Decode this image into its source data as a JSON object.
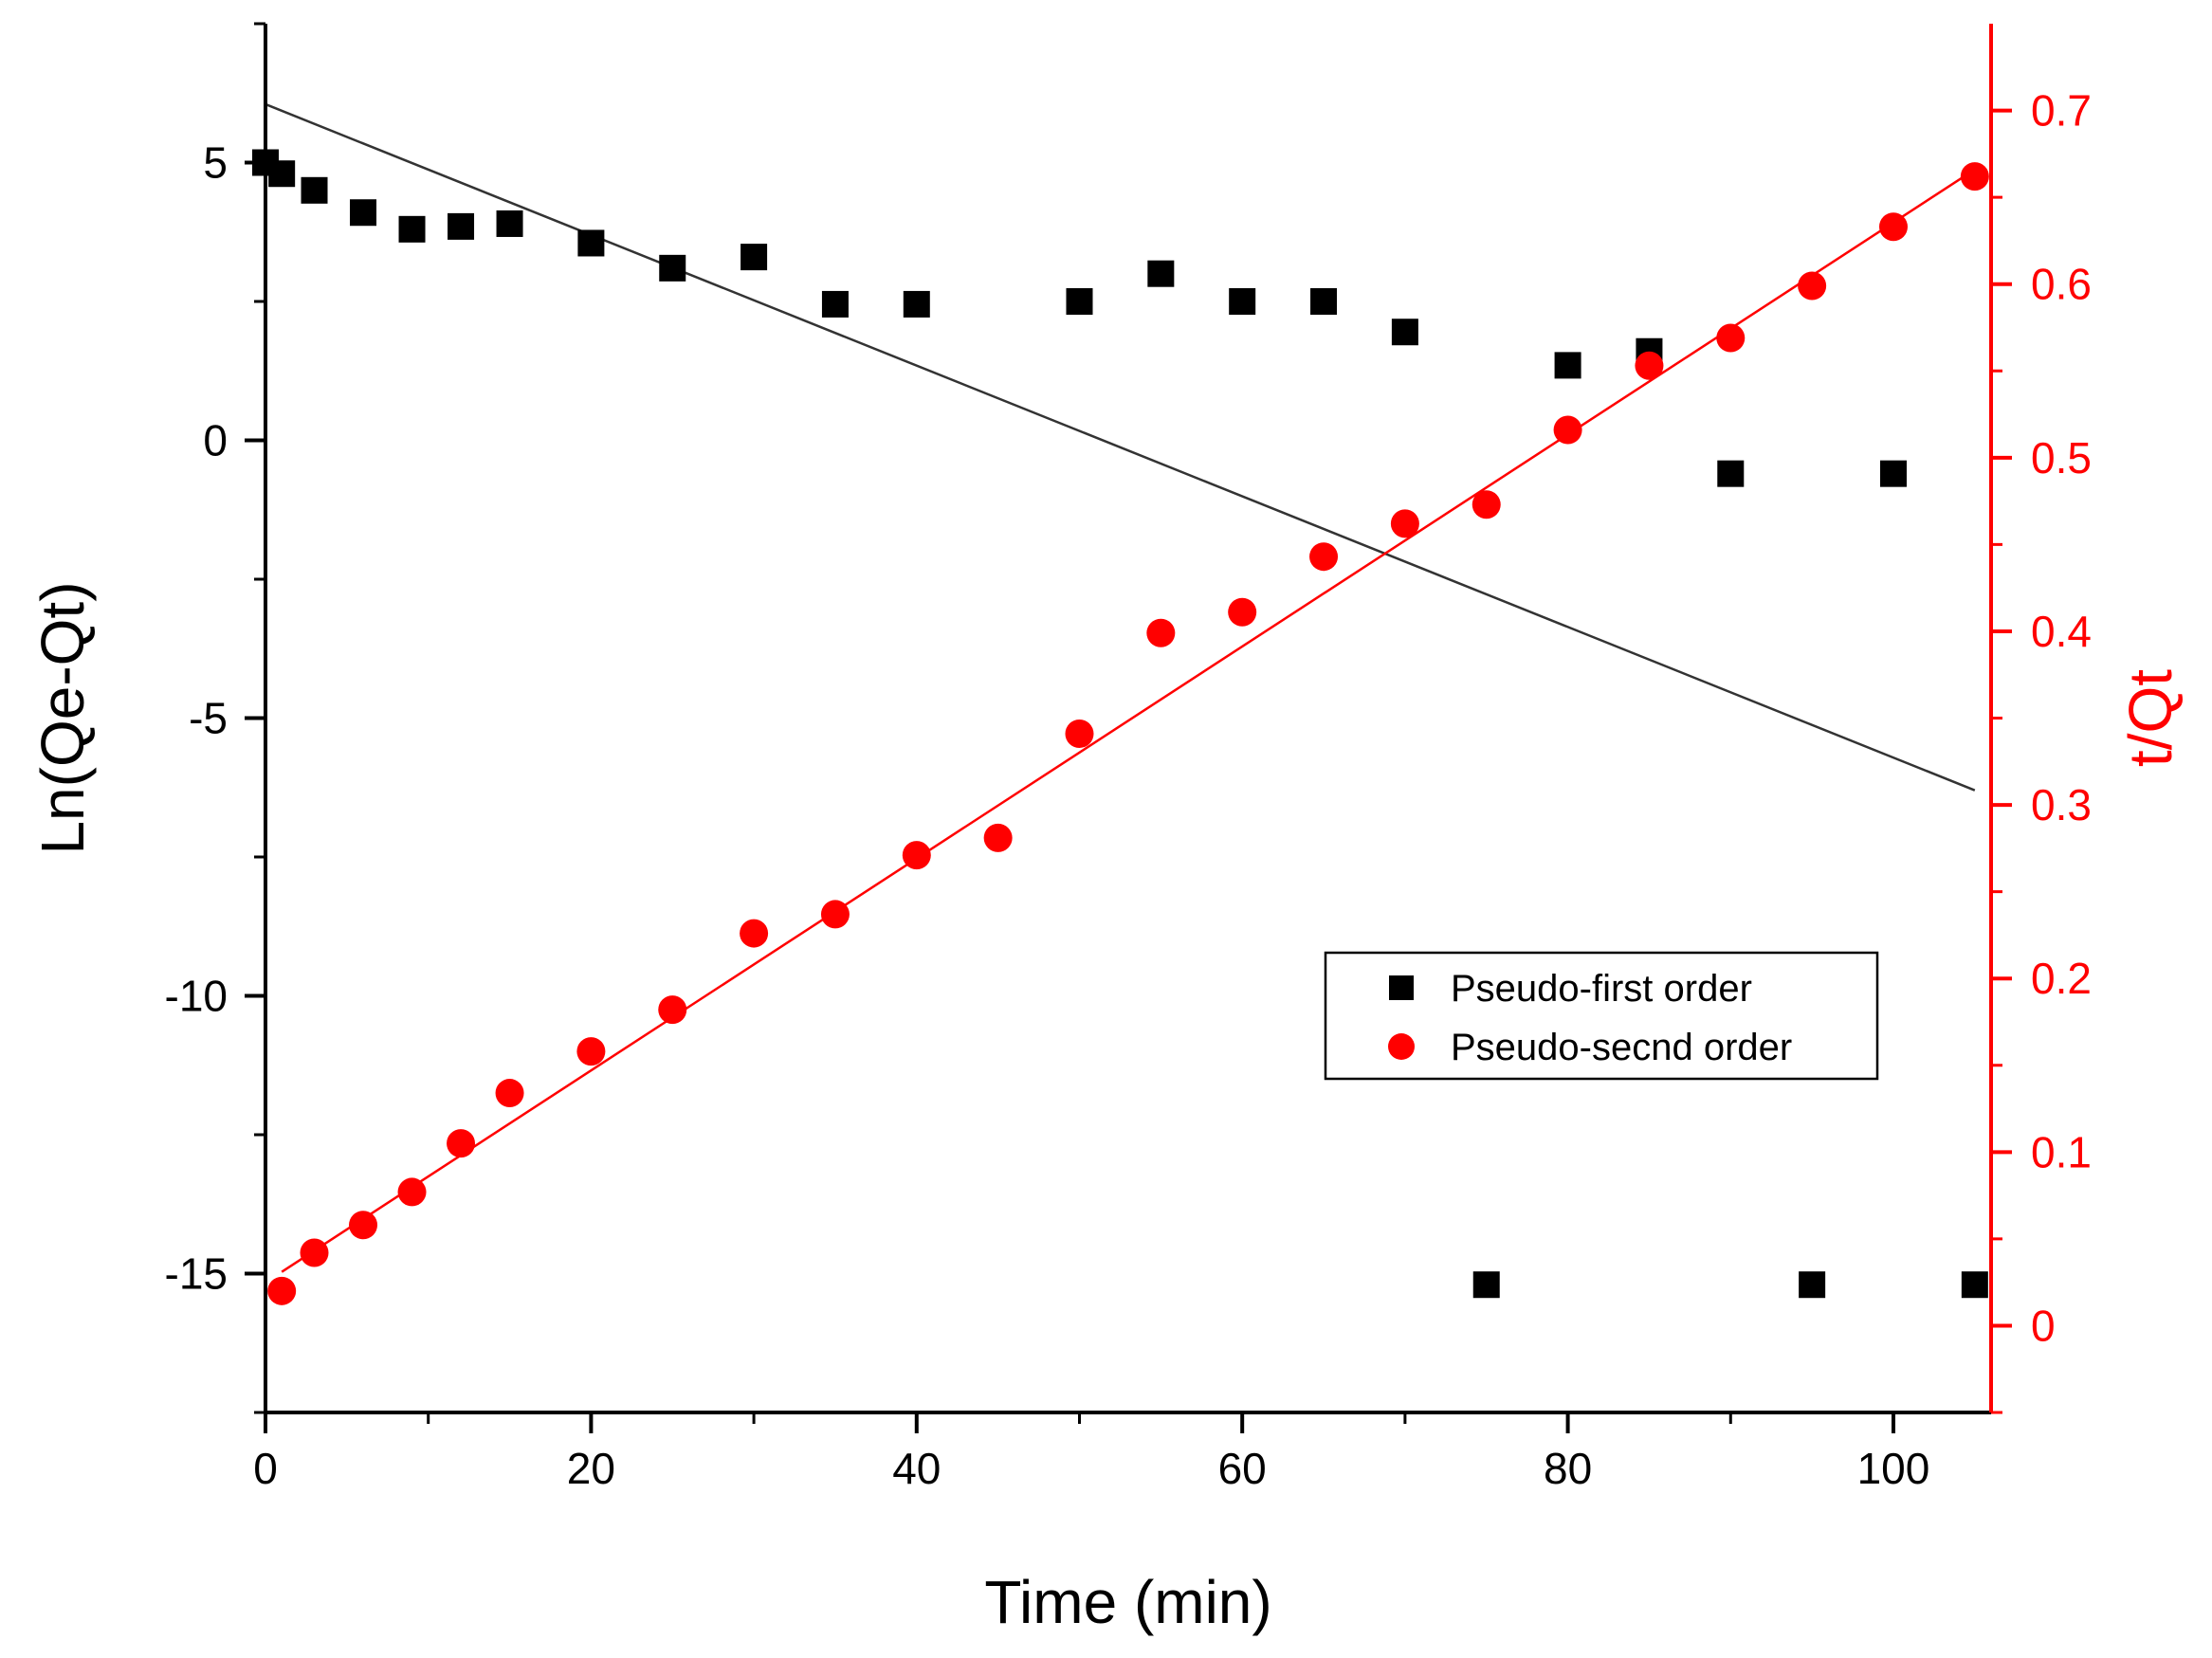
{
  "chart_data": {
    "type": "scatter",
    "title": "",
    "xlabel": "Time (min)",
    "ylabel_left": "Ln(Qe-Qt)",
    "ylabel_right": "t/Qt",
    "xlim": [
      0,
      106
    ],
    "ylim_left": [
      -17.5,
      7.5
    ],
    "ylim_right": [
      -0.05,
      0.75
    ],
    "x_ticks": [
      "0",
      "20",
      "40",
      "60",
      "80",
      "100"
    ],
    "y_left_ticks": [
      "5",
      "0",
      "-5",
      "-10",
      "-15"
    ],
    "y_right_ticks": [
      "0",
      "0.1",
      "0.2",
      "0.3",
      "0.4",
      "0.5",
      "0.6",
      "0.7"
    ],
    "legend_position": "center-right",
    "series": [
      {
        "name": "Pseudo-first order",
        "axis": "left",
        "marker": "square",
        "color": "#000000",
        "x": [
          0,
          1,
          3,
          6,
          9,
          12,
          15,
          20,
          25,
          30,
          35,
          40,
          50,
          55,
          60,
          65,
          70,
          75,
          80,
          85,
          90,
          95,
          100,
          105
        ],
        "y": [
          5.0,
          4.8,
          4.5,
          4.1,
          3.8,
          3.85,
          3.9,
          3.55,
          3.1,
          3.3,
          2.45,
          2.45,
          2.5,
          3.0,
          2.5,
          2.5,
          1.95,
          -15.2,
          1.35,
          1.6,
          -0.6,
          -15.2,
          -0.6,
          -15.2
        ]
      },
      {
        "name": "Pseudo-secnd order",
        "axis": "right",
        "marker": "circle",
        "color": "#ff0000",
        "x": [
          1,
          3,
          6,
          9,
          12,
          15,
          20,
          25,
          30,
          35,
          40,
          45,
          50,
          55,
          60,
          65,
          70,
          75,
          80,
          85,
          90,
          95,
          100,
          105
        ],
        "y": [
          0.02,
          0.042,
          0.058,
          0.077,
          0.105,
          0.134,
          0.158,
          0.182,
          0.226,
          0.237,
          0.271,
          0.281,
          0.341,
          0.399,
          0.411,
          0.443,
          0.462,
          0.473,
          0.516,
          0.553,
          0.569,
          0.599,
          0.633,
          0.662
        ]
      }
    ],
    "fit_lines": [
      {
        "name": "first-order-fit",
        "axis": "left",
        "color": "#333333",
        "x": [
          0,
          105
        ],
        "y": [
          6.05,
          -6.3
        ]
      },
      {
        "name": "second-order-fit",
        "axis": "right",
        "color": "#ff0000",
        "x": [
          1,
          105
        ],
        "y": [
          0.031,
          0.666
        ]
      }
    ]
  }
}
